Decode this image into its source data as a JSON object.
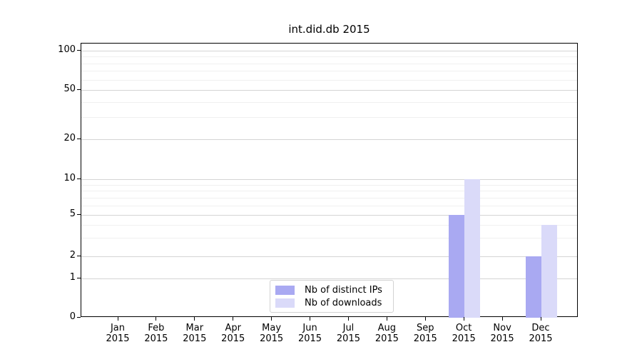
{
  "figure": {
    "background": "#ffffff"
  },
  "chart_data": {
    "type": "bar",
    "title": "int.did.db 2015",
    "categories": [
      "Jan",
      "Feb",
      "Mar",
      "Apr",
      "May",
      "Jun",
      "Jul",
      "Aug",
      "Sep",
      "Oct",
      "Nov",
      "Dec"
    ],
    "category_subline": "2015",
    "series": [
      {
        "name": "Nb of distinct IPs",
        "color": "#a9a9f2",
        "values": [
          0,
          0,
          0,
          0,
          0,
          0,
          0,
          0,
          0,
          5,
          0,
          2
        ]
      },
      {
        "name": "Nb of downloads",
        "color": "#dadaf9",
        "values": [
          0,
          0,
          0,
          0,
          0,
          0,
          0,
          0,
          0,
          10,
          0,
          4
        ]
      }
    ],
    "xlabel": "",
    "ylabel": "",
    "ylim": [
      0,
      100
    ],
    "y_scale": "log-like (linear 0-1, logarithmic above 1)",
    "y_major_ticks": [
      100,
      50,
      20,
      10,
      5,
      2,
      1,
      0
    ],
    "y_minor_gridlines": [
      3,
      4,
      6,
      7,
      8,
      9,
      30,
      40,
      60,
      70,
      80,
      90
    ],
    "grid": true,
    "legend": {
      "position": "inside bottom-center",
      "entries": [
        "Nb of distinct IPs",
        "Nb of downloads"
      ]
    },
    "colors": {
      "major_grid": "#d4d4d4",
      "minor_grid": "#f0f0f0",
      "axis": "#000000",
      "bar_distinct_ips": "#a9a9f2",
      "bar_downloads": "#dadaf9"
    }
  }
}
